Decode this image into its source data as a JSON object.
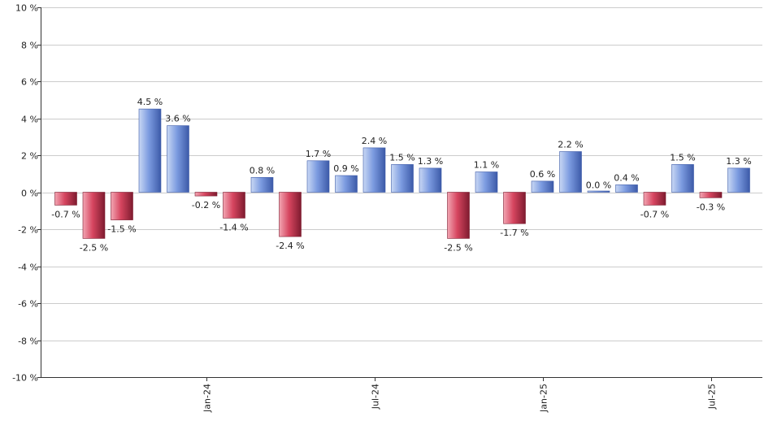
{
  "chart_data": {
    "type": "bar",
    "title": "",
    "xlabel": "",
    "ylabel": "",
    "ylim": [
      -10,
      10
    ],
    "ytick_step": 2,
    "grid": true,
    "value_suffix": " %",
    "values": [
      -0.7,
      -2.5,
      -1.5,
      4.5,
      3.6,
      -0.2,
      -1.4,
      0.8,
      -2.4,
      1.7,
      0.9,
      2.4,
      1.5,
      1.3,
      -2.5,
      1.1,
      -1.7,
      0.6,
      2.2,
      0.0,
      0.4,
      -0.7,
      1.5,
      -0.3,
      1.3
    ],
    "x_ticks": [
      {
        "bar_index": 5,
        "label": "Jan-24"
      },
      {
        "bar_index": 11,
        "label": "Jul-24"
      },
      {
        "bar_index": 17,
        "label": "Jan-25"
      },
      {
        "bar_index": 23,
        "label": "Jul-25"
      }
    ]
  },
  "colors": {
    "positive_light": "#c9d8f4",
    "positive_mid": "#7c9be0",
    "positive_dark": "#3c5aa8",
    "negative_light": "#f2a6b3",
    "negative_mid": "#d6455f",
    "negative_dark": "#7e1b2f",
    "grid": "#cccccc",
    "axis": "#333333"
  }
}
